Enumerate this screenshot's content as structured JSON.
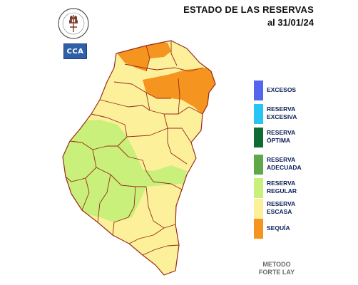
{
  "header": {
    "title": "ESTADO DE LAS RESERVAS",
    "date": "al 31/01/24"
  },
  "logos": {
    "seal": {
      "icon": "bolsa-cereales-seal-icon",
      "text": "BOLSA DE CEREALES DE ENTRE RIOS"
    },
    "cca": {
      "icon": "cca-logo-icon",
      "text": "CCA"
    }
  },
  "map": {
    "region": "Entre Ríos",
    "colors": {
      "seco_escasa": "#fdf09a",
      "regular": "#c9f07a",
      "sequia": "#f5941f",
      "border": "#9a2a1a"
    }
  },
  "legend": {
    "items": [
      {
        "label": "EXCESOS",
        "color": "#5566ee"
      },
      {
        "label": "RESERVA EXCESIVA",
        "color": "#28c4f4"
      },
      {
        "label": "RESERVA ÓPTIMA",
        "color": "#0f6b33"
      },
      {
        "label": "RESERVA ADECUADA",
        "color": "#5fa84a"
      },
      {
        "label": "RESERVA REGULAR",
        "color": "#c9f07a"
      },
      {
        "label": "RESERVA ESCASA",
        "color": "#fdf09a"
      },
      {
        "label": "SEQUÍA",
        "color": "#f5941f"
      }
    ]
  },
  "footer": {
    "method_line1": "METODO",
    "method_line2": "FORTE LAY"
  }
}
